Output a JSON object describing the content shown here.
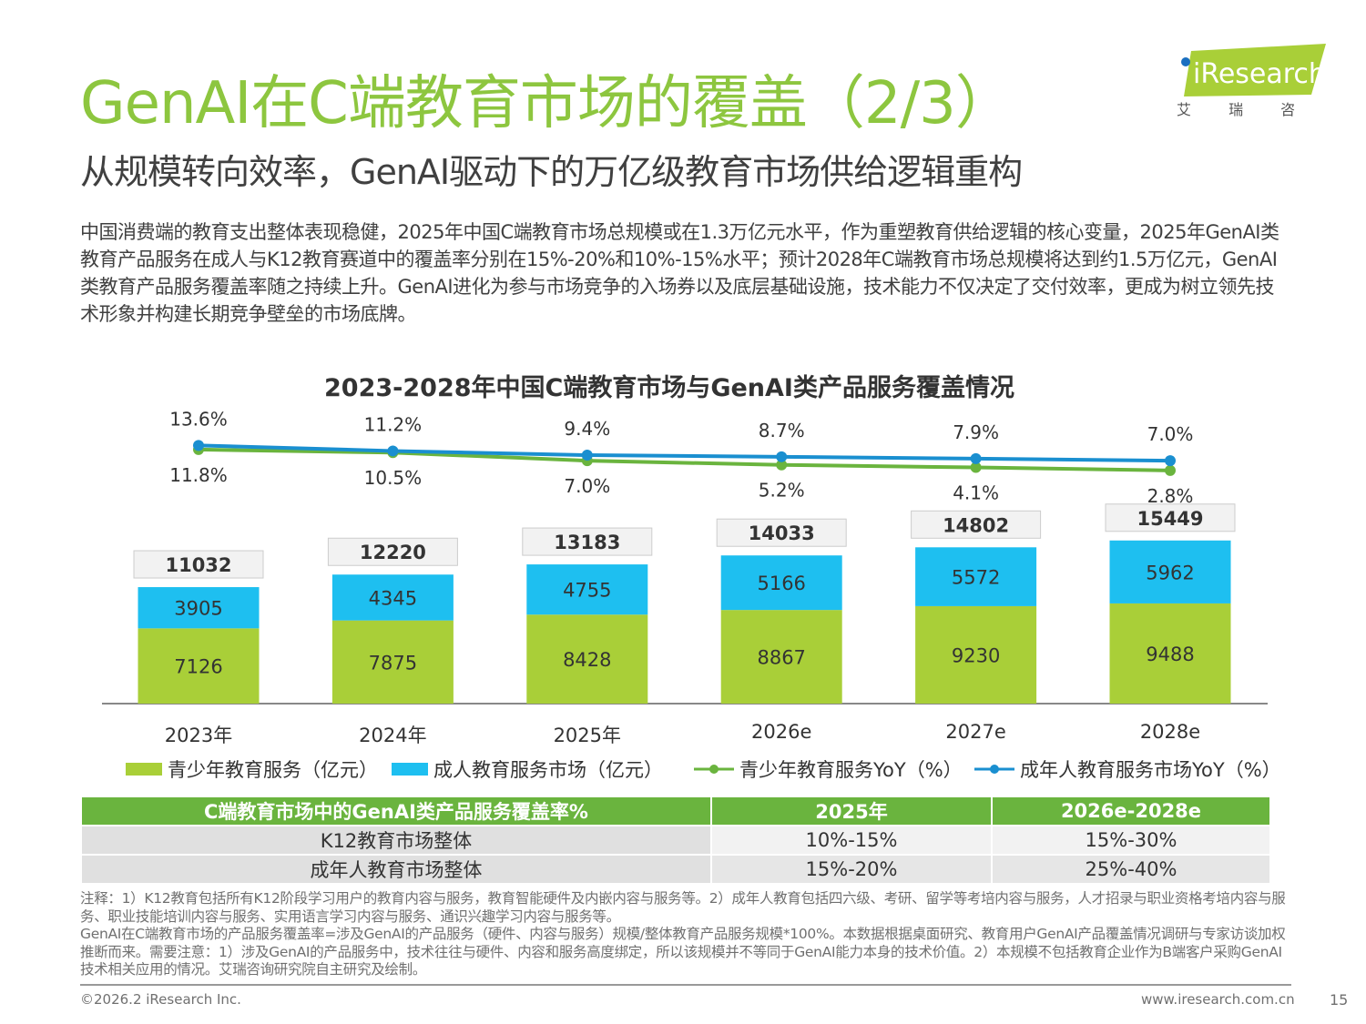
{
  "title": "GenAI在C端教育市场的覆盖（2/3）",
  "subtitle": "从规模转向效率，GenAI驱动下的万亿级教育市场供给逻辑重构",
  "intro": "中国消费端的教育支出整体表现稳健，2025年中国C端教育市场总规模或在1.3万亿元水平，作为重塑教育供给逻辑的核心变量，2025年GenAI类教育产品服务在成人与K12教育赛道中的覆盖率分别在15%-20%和10%-15%水平；预计2028年C端教育市场总规模将达到约1.5万亿元，GenAI类教育产品服务覆盖率随之持续上升。GenAI进化为参与市场竞争的入场券以及底层基础设施，技术能力不仅决定了交付效率，更成为树立领先技术形象并构建长期竞争壁垒的市场底牌。",
  "logo": {
    "text": "iResearch",
    "cn": "艾 瑞 咨 询"
  },
  "chart_data": {
    "type": "bar+line",
    "title": "2023-2028年中国C端教育市场与GenAI类产品服务覆盖情况",
    "categories": [
      "2023年",
      "2024年",
      "2025年",
      "2026e",
      "2027e",
      "2028e"
    ],
    "series": [
      {
        "name": "青少年教育服务（亿元）",
        "kind": "stacked-bar",
        "color": "#a9cf38",
        "values": [
          7126,
          7875,
          8428,
          8867,
          9230,
          9488
        ]
      },
      {
        "name": "成人教育服务市场（亿元）",
        "kind": "stacked-bar",
        "color": "#1ebff0",
        "values": [
          3905,
          4345,
          4755,
          5166,
          5572,
          5962
        ]
      },
      {
        "name": "青少年教育服务YoY（%）",
        "kind": "line",
        "color": "#6ab43e",
        "values": [
          11.8,
          10.5,
          7.0,
          5.2,
          4.1,
          2.8
        ]
      },
      {
        "name": "成年人教育服务市场YoY（%）",
        "kind": "line",
        "color": "#1a8fd0",
        "values": [
          13.6,
          11.2,
          9.4,
          8.7,
          7.9,
          7.0
        ]
      }
    ],
    "totals": [
      11032,
      12220,
      13183,
      14033,
      14802,
      15449
    ],
    "legend": "bottom"
  },
  "table": {
    "headers": [
      "C端教育市场中的GenAI类产品服务覆盖率%",
      "2025年",
      "2026e-2028e"
    ],
    "rows": [
      [
        "K12教育市场整体",
        "10%-15%",
        "15%-30%"
      ],
      [
        "成年人教育市场整体",
        "15%-20%",
        "25%-40%"
      ]
    ]
  },
  "notes": [
    "注释：1）K12教育包括所有K12阶段学习用户的教育内容与服务，教育智能硬件及内嵌内容与服务等。2）成年人教育包括四六级、考研、留学等考培内容与服务，人才招录与职业资格考培内容与服务、职业技能培训内容与服务、实用语言学习内容与服务、通识兴趣学习内容与服务等。",
    "GenAI在C端教育市场的产品服务覆盖率=涉及GenAI的产品服务（硬件、内容与服务）规模/整体教育产品服务规模*100%。本数据根据桌面研究、教育用户GenAI产品覆盖情况调研与专家访谈加权推断而来。需要注意：1）涉及GenAI的产品服务中，技术往往与硬件、内容和服务高度绑定，所以该规模并不等同于GenAI能力本身的技术价值。2）本规模不包括教育企业作为B端客户采购GenAI技术相关应用的情况。艾瑞咨询研究院自主研究及绘制。"
  ],
  "footer": {
    "copyright": "©2026.2 iResearch Inc.",
    "site": "www.iresearch.com.cn",
    "page": "15"
  }
}
